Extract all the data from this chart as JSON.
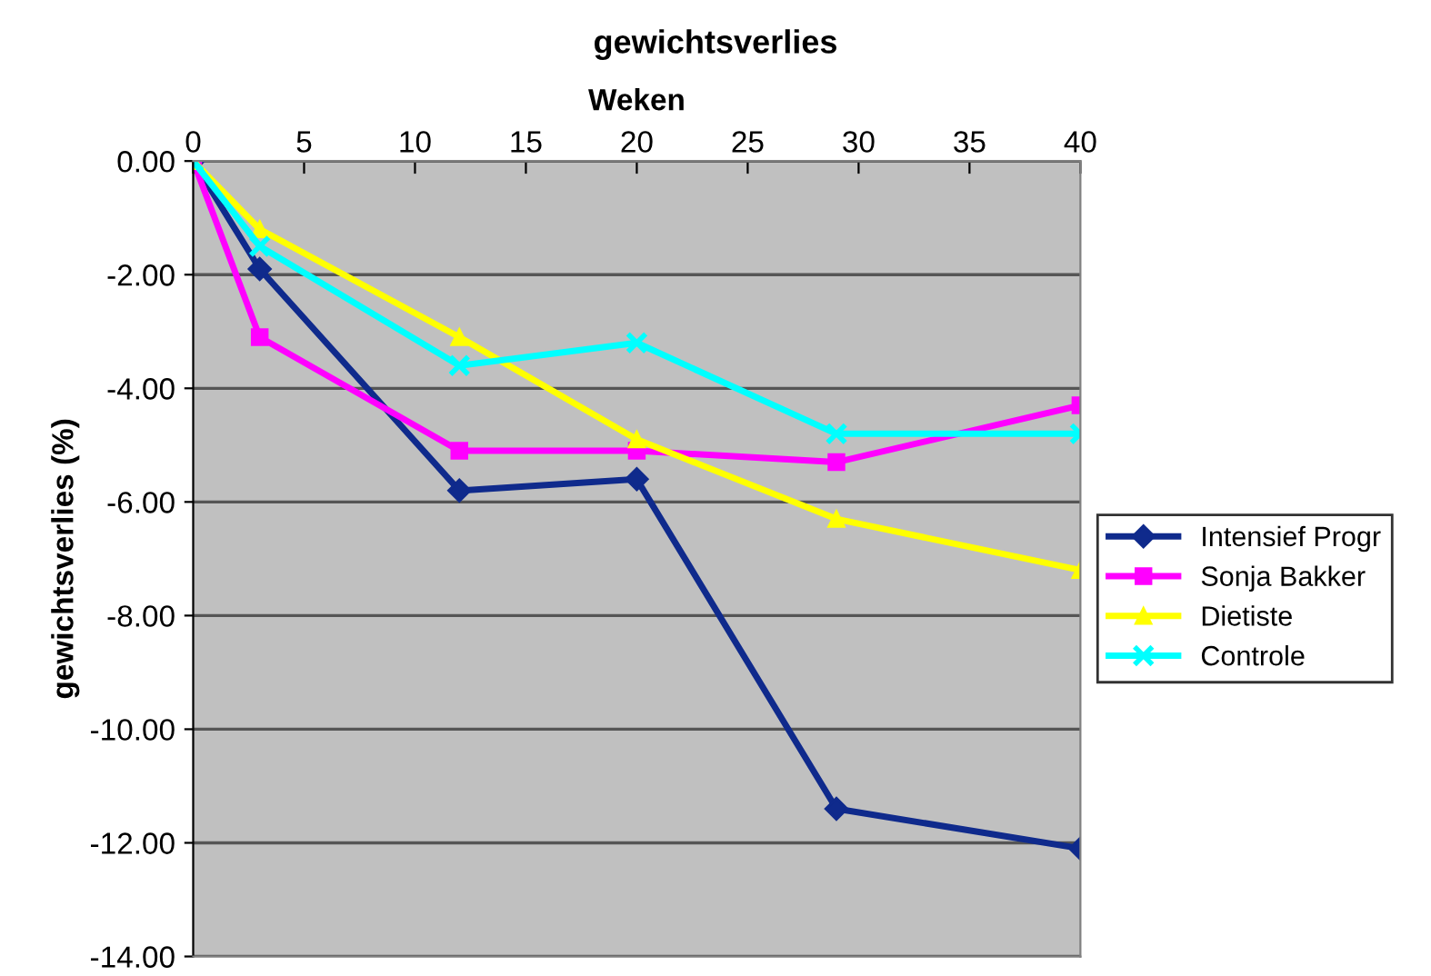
{
  "chart_data": {
    "type": "line",
    "title": "gewichtsverlies",
    "xlabel": "Weken",
    "ylabel": "gewichtsverlies (%)",
    "x": [
      0,
      3,
      12,
      20,
      29,
      40
    ],
    "series": [
      {
        "name": "Intensief Progr",
        "color": "#0f2a8c",
        "marker": "diamond",
        "values": [
          0,
          -1.9,
          -5.8,
          -5.6,
          -11.4,
          -12.1
        ]
      },
      {
        "name": "Sonja Bakker",
        "color": "#ff00ff",
        "marker": "square",
        "values": [
          0,
          -3.1,
          -5.1,
          -5.1,
          -5.3,
          -4.3
        ]
      },
      {
        "name": "Dietiste",
        "color": "#ffff00",
        "marker": "triangle",
        "values": [
          0,
          -1.2,
          -3.1,
          -4.9,
          -6.3,
          -7.2
        ]
      },
      {
        "name": "Controle",
        "color": "#00ffff",
        "marker": "cross",
        "values": [
          0,
          -1.5,
          -3.6,
          -3.2,
          -4.8,
          -4.8
        ]
      }
    ],
    "xlim": [
      0,
      40
    ],
    "xticks": [
      0,
      5,
      10,
      15,
      20,
      25,
      30,
      35,
      40
    ],
    "ylim": [
      -14,
      0
    ],
    "yticks": [
      {
        "value": 0,
        "label": "0.00"
      },
      {
        "value": -2,
        "label": "-2.00"
      },
      {
        "value": -4,
        "label": "-4.00"
      },
      {
        "value": -6,
        "label": "-6.00"
      },
      {
        "value": -8,
        "label": "-8.00"
      },
      {
        "value": -10,
        "label": "-10.00"
      },
      {
        "value": -12,
        "label": "-12.00"
      },
      {
        "value": -14,
        "label": "-14.00"
      }
    ],
    "grid": "y",
    "legend": "right",
    "line_style": "solid"
  }
}
